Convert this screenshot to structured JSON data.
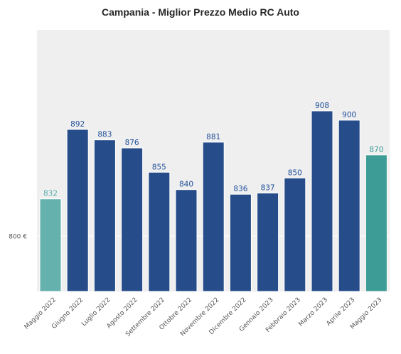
{
  "chart_data": {
    "type": "bar",
    "title": "Campania - Miglior Prezzo Medio RC Auto",
    "categories": [
      "Maggio 2022",
      "Giugno 2022",
      "Luglio 2022",
      "Agosto 2022",
      "Settembre 2022",
      "Ottobre 2022",
      "Novembre 2022",
      "Dicembre 2022",
      "Gennaio 2023",
      "Febbraio 2023",
      "Marzo 2023",
      "Aprile 2023",
      "Maggio 2023"
    ],
    "values": [
      832,
      892,
      883,
      876,
      855,
      840,
      881,
      836,
      837,
      850,
      908,
      900,
      870
    ],
    "value_labels": [
      "832",
      "892",
      "883",
      "876",
      "855",
      "840",
      "881",
      "836",
      "837",
      "850",
      "908",
      "900",
      "870"
    ],
    "y_ticks": [
      {
        "value": 800,
        "label": "800 €"
      }
    ],
    "ylim": [
      752,
      978
    ],
    "xlabel": "",
    "ylabel": "",
    "grid": true,
    "background": "#efefef",
    "colors": {
      "default": "#264c8a",
      "first": "#64b1ad",
      "last": "#3d9c96",
      "label_default": "#1f4e99",
      "label_first": "#5aaeae",
      "label_last": "#3a9c98"
    }
  }
}
